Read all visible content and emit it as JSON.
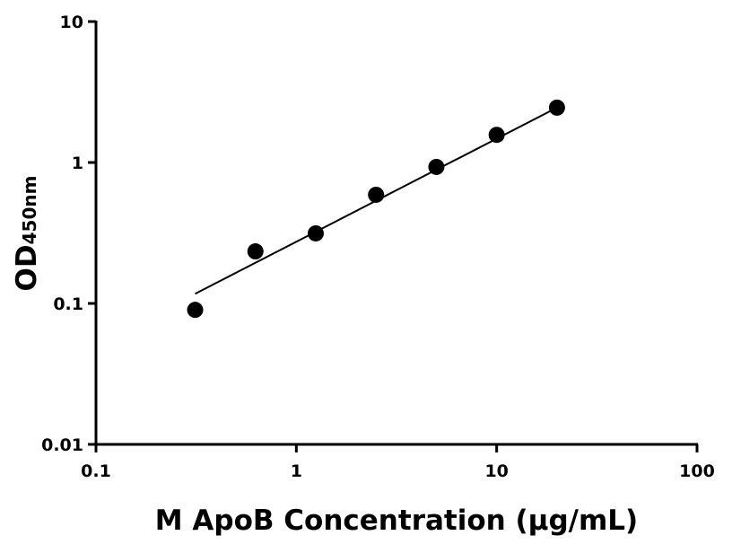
{
  "chart_data": {
    "type": "scatter",
    "title": "",
    "xlabel": "M ApoB Concentration (μg/mL)",
    "ylabel_main": "OD",
    "ylabel_sub": "450nm",
    "xscale": "log",
    "yscale": "log",
    "xlim": [
      0.1,
      100
    ],
    "ylim": [
      0.01,
      10
    ],
    "x_ticks": [
      0.1,
      1,
      10,
      100
    ],
    "x_tick_labels": [
      "0.1",
      "1",
      "10",
      "100"
    ],
    "y_ticks": [
      0.01,
      0.1,
      1,
      10
    ],
    "y_tick_labels": [
      "0.01",
      "0.1",
      "1",
      "10"
    ],
    "grid": false,
    "points": {
      "x": [
        0.3125,
        0.625,
        1.25,
        2.5,
        5,
        10,
        20
      ],
      "y": [
        0.09,
        0.234,
        0.314,
        0.59,
        0.93,
        1.57,
        2.45
      ]
    },
    "fit_line": {
      "x": [
        0.3125,
        20
      ],
      "y": [
        0.117,
        2.45
      ]
    },
    "colors": {
      "points": "#000000",
      "line": "#000000",
      "axes": "#000000"
    }
  }
}
